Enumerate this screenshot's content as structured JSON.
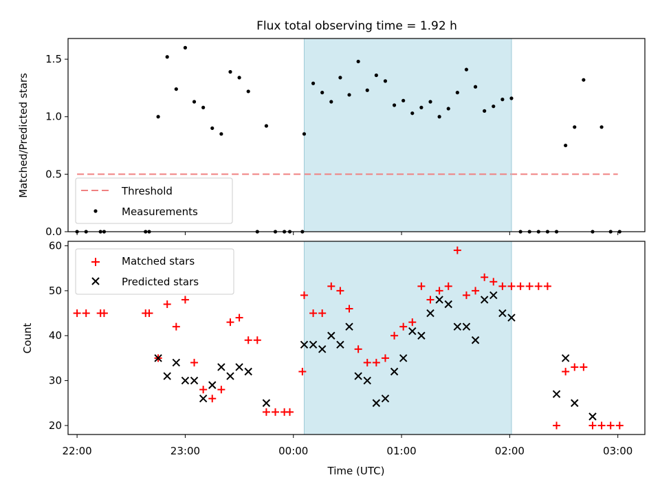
{
  "figure": {
    "title": "Flux total observing time = 1.92 h"
  },
  "chart_data": [
    {
      "type": "scatter",
      "panel": "top",
      "ylabel": "Matched/Predicted stars",
      "xlabel": "",
      "xlim": [
        "21:55",
        "03:15"
      ],
      "ylim": [
        0,
        1.68
      ],
      "yticks": [
        0.0,
        0.5,
        1.0,
        1.5
      ],
      "ytick_labels": [
        "0.0",
        "0.5",
        "1.0",
        "1.5"
      ],
      "grid": false,
      "legend_loc": "lower-left",
      "highlight_band": {
        "x": [
          "00:06",
          "02:01"
        ],
        "color": "#add8e6"
      },
      "threshold": {
        "name": "Threshold",
        "y": 0.5,
        "x": [
          "22:00",
          "03:00"
        ],
        "color": "#f08080",
        "style": "dashed"
      },
      "series": [
        {
          "name": "Measurements",
          "marker": "dot",
          "color": "#000000",
          "x": [
            "22:00",
            "22:05",
            "22:13",
            "22:15",
            "22:38",
            "22:40",
            "22:45",
            "22:50",
            "22:55",
            "23:00",
            "23:05",
            "23:10",
            "23:15",
            "23:20",
            "23:25",
            "23:30",
            "23:35",
            "23:40",
            "23:45",
            "23:50",
            "23:55",
            "23:58",
            "24:05",
            "24:06",
            "24:11",
            "24:16",
            "24:21",
            "24:26",
            "24:31",
            "24:36",
            "24:41",
            "24:46",
            "24:51",
            "24:56",
            "25:01",
            "25:06",
            "25:11",
            "25:16",
            "25:21",
            "25:26",
            "25:31",
            "25:36",
            "25:41",
            "25:46",
            "25:51",
            "25:56",
            "26:01",
            "26:06",
            "26:11",
            "26:16",
            "26:21",
            "26:26",
            "26:31",
            "26:36",
            "26:41",
            "26:46",
            "26:51",
            "26:56",
            "27:01"
          ],
          "y": [
            0,
            0,
            0,
            0,
            0,
            0,
            1.0,
            1.52,
            1.24,
            1.6,
            1.13,
            1.08,
            0.9,
            0.85,
            1.39,
            1.34,
            1.22,
            0,
            0.92,
            0,
            0,
            0,
            0,
            0.85,
            1.29,
            1.21,
            1.13,
            1.34,
            1.19,
            1.48,
            1.23,
            1.36,
            1.31,
            1.1,
            1.14,
            1.03,
            1.08,
            1.13,
            1.0,
            1.07,
            1.21,
            1.41,
            1.26,
            1.05,
            1.09,
            1.15,
            1.16,
            0,
            0,
            0,
            0,
            0,
            0.75,
            0.91,
            1.32,
            0,
            0.91,
            0,
            0
          ]
        }
      ]
    },
    {
      "type": "scatter",
      "panel": "bottom",
      "xlabel": "Time (UTC)",
      "ylabel": "Count",
      "xlim": [
        "21:55",
        "03:15"
      ],
      "xticks": [
        "22:00",
        "23:00",
        "00:00",
        "01:00",
        "02:00",
        "03:00"
      ],
      "ylim": [
        18,
        61
      ],
      "yticks": [
        20,
        30,
        40,
        50,
        60
      ],
      "ytick_labels": [
        "20",
        "30",
        "40",
        "50",
        "60"
      ],
      "grid": false,
      "legend_loc": "upper-left",
      "highlight_band": {
        "x": [
          "00:06",
          "02:01"
        ],
        "color": "#add8e6"
      },
      "series": [
        {
          "name": "Matched stars",
          "marker": "plus",
          "color": "#ff0000",
          "x": [
            "22:00",
            "22:05",
            "22:13",
            "22:15",
            "22:38",
            "22:40",
            "22:45",
            "22:50",
            "22:55",
            "23:00",
            "23:05",
            "23:10",
            "23:15",
            "23:20",
            "23:25",
            "23:30",
            "23:35",
            "23:40",
            "23:45",
            "23:50",
            "23:55",
            "23:58",
            "24:05",
            "24:06",
            "24:11",
            "24:16",
            "24:21",
            "24:26",
            "24:31",
            "24:36",
            "24:41",
            "24:46",
            "24:51",
            "24:56",
            "25:01",
            "25:06",
            "25:11",
            "25:16",
            "25:21",
            "25:26",
            "25:31",
            "25:36",
            "25:41",
            "25:46",
            "25:51",
            "25:56",
            "26:01",
            "26:06",
            "26:11",
            "26:16",
            "26:21",
            "26:26",
            "26:31",
            "26:36",
            "26:41",
            "26:46",
            "26:51",
            "26:56",
            "27:01"
          ],
          "y": [
            45,
            45,
            45,
            45,
            45,
            45,
            35,
            47,
            42,
            48,
            34,
            28,
            26,
            28,
            43,
            44,
            39,
            39,
            23,
            23,
            23,
            23,
            32,
            49,
            45,
            45,
            51,
            50,
            46,
            37,
            34,
            34,
            35,
            40,
            42,
            43,
            51,
            48,
            50,
            51,
            59,
            49,
            50,
            53,
            52,
            51,
            51,
            51,
            51,
            51,
            51,
            20,
            32,
            33,
            33,
            20,
            20,
            20,
            20
          ]
        },
        {
          "name": "Predicted stars",
          "marker": "x",
          "color": "#000000",
          "x": [
            "22:45",
            "22:50",
            "22:55",
            "23:00",
            "23:05",
            "23:10",
            "23:15",
            "23:20",
            "23:25",
            "23:30",
            "23:35",
            "23:45",
            "24:06",
            "24:11",
            "24:16",
            "24:21",
            "24:26",
            "24:31",
            "24:36",
            "24:41",
            "24:46",
            "24:51",
            "24:56",
            "25:01",
            "25:06",
            "25:11",
            "25:16",
            "25:21",
            "25:26",
            "25:31",
            "25:36",
            "25:41",
            "25:46",
            "25:51",
            "25:56",
            "26:01",
            "26:26",
            "26:31",
            "26:36",
            "26:46"
          ],
          "y": [
            35,
            31,
            34,
            30,
            30,
            26,
            29,
            33,
            31,
            33,
            32,
            25,
            38,
            38,
            37,
            40,
            38,
            42,
            31,
            30,
            25,
            26,
            32,
            35,
            41,
            40,
            45,
            48,
            47,
            42,
            42,
            39,
            48,
            49,
            45,
            44,
            27,
            35,
            25,
            22
          ]
        }
      ]
    }
  ]
}
